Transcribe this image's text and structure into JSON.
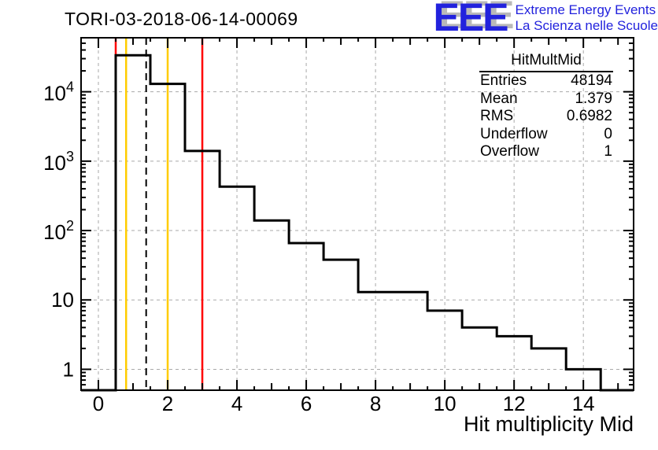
{
  "header": {
    "title": "TORI-03-2018-06-14-00069"
  },
  "logo": {
    "acronym": "EEE",
    "line1": "Extreme Energy Events",
    "line2": "La Scienza nelle Scuole",
    "text_color": "#2222dd",
    "shadow_color": "#b9b9b9"
  },
  "stats": {
    "title": "HitMultMid",
    "rows": [
      {
        "label": "Entries",
        "value": "48194"
      },
      {
        "label": "Mean",
        "value": "1.379"
      },
      {
        "label": "RMS",
        "value": "0.6982"
      },
      {
        "label": "Underflow",
        "value": "0"
      },
      {
        "label": "Overflow",
        "value": "1"
      }
    ]
  },
  "chart_data": {
    "type": "bar",
    "title": "TORI-03-2018-06-14-00069",
    "xlabel": "Hit multiplicity Mid",
    "ylabel": "",
    "y_scale": "log",
    "x_range": [
      -0.5,
      15.45
    ],
    "y_range": [
      0.5,
      60000
    ],
    "grid": true,
    "histogram_name": "HitMultMid",
    "bin_width": 1,
    "bin_centers": [
      0,
      1,
      2,
      3,
      4,
      5,
      6,
      7,
      8,
      9,
      10,
      11,
      12,
      13,
      14,
      15
    ],
    "counts": [
      0,
      33500,
      13000,
      1400,
      430,
      140,
      66,
      38,
      13,
      13,
      7,
      4,
      3,
      2,
      1,
      0
    ],
    "entries": 48194,
    "mean": 1.379,
    "rms": 0.6982,
    "underflow": 0,
    "overflow": 1,
    "x_major_ticks": [
      {
        "v": 0,
        "label": "0"
      },
      {
        "v": 2,
        "label": "2"
      },
      {
        "v": 4,
        "label": "4"
      },
      {
        "v": 6,
        "label": "6"
      },
      {
        "v": 8,
        "label": "8"
      },
      {
        "v": 10,
        "label": "10"
      },
      {
        "v": 12,
        "label": "12"
      },
      {
        "v": 14,
        "label": "14"
      }
    ],
    "y_major_ticks": [
      {
        "v": 1,
        "base": "1",
        "exp": ""
      },
      {
        "v": 10,
        "base": "10",
        "exp": ""
      },
      {
        "v": 100,
        "base": "10",
        "exp": "2"
      },
      {
        "v": 1000,
        "base": "10",
        "exp": "3"
      },
      {
        "v": 10000,
        "base": "10",
        "exp": "4"
      }
    ],
    "marker_lines": [
      {
        "name": "yellow-threshold-low",
        "x": 0.8,
        "color": "#ffcc00",
        "style": "solid"
      },
      {
        "name": "yellow-threshold-high",
        "x": 2.0,
        "color": "#ffcc00",
        "style": "solid"
      },
      {
        "name": "red-threshold-low",
        "x": 0.5,
        "color": "#ff0000",
        "style": "solid"
      },
      {
        "name": "red-threshold-high",
        "x": 3.0,
        "color": "#ff0000",
        "style": "solid"
      },
      {
        "name": "mean-line",
        "x": 1.379,
        "color": "#000000",
        "style": "dashed"
      }
    ],
    "line_color": "#000000",
    "grid_color": "#a9a9a9"
  }
}
